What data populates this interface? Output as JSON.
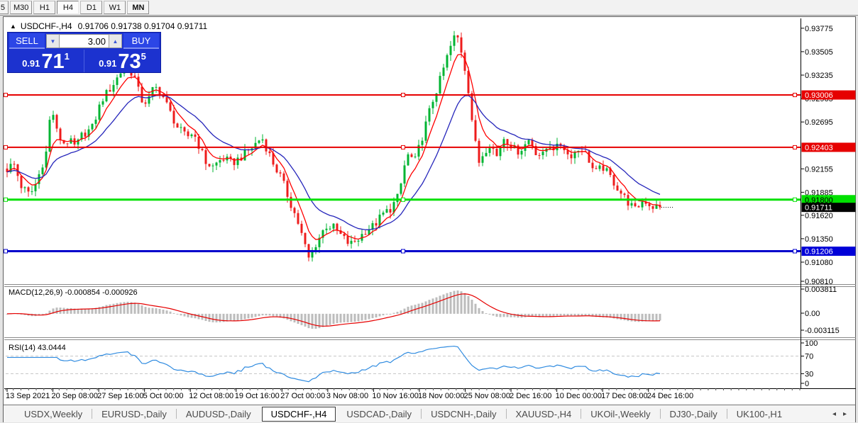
{
  "toolbar": {
    "partial_button": "5",
    "buttons": [
      "M30",
      "H1",
      "H4",
      "D1",
      "W1",
      "MN"
    ],
    "active": "H4"
  },
  "chart": {
    "collapse_icon": "▲",
    "title_symbol": "USDCHF-,H4",
    "title_ohlc": "0.91706 0.91738 0.91704 0.91711"
  },
  "trade_panel": {
    "sell_label": "SELL",
    "buy_label": "BUY",
    "volume": "3.00",
    "spin_down_icon": "▼",
    "spin_up_icon": "▲",
    "sell_price_prefix": "0.91",
    "sell_price_big": "71",
    "sell_price_sup": "1",
    "buy_price_prefix": "0.91",
    "buy_price_big": "73",
    "buy_price_sup": "5"
  },
  "chart_data": {
    "type": "candlestick-with-indicators",
    "symbol": "USDCHF-,H4",
    "current_price": 0.91711,
    "bar_count": 185,
    "price_path": [
      [
        0.0,
        0.9215
      ],
      [
        0.01,
        0.9222
      ],
      [
        0.022,
        0.9195
      ],
      [
        0.035,
        0.9185
      ],
      [
        0.045,
        0.92
      ],
      [
        0.06,
        0.9235
      ],
      [
        0.068,
        0.929
      ],
      [
        0.075,
        0.926
      ],
      [
        0.085,
        0.9245
      ],
      [
        0.095,
        0.9248
      ],
      [
        0.105,
        0.924
      ],
      [
        0.115,
        0.9255
      ],
      [
        0.13,
        0.9262
      ],
      [
        0.145,
        0.9295
      ],
      [
        0.16,
        0.931
      ],
      [
        0.175,
        0.9328
      ],
      [
        0.185,
        0.9332
      ],
      [
        0.195,
        0.9322
      ],
      [
        0.205,
        0.9295
      ],
      [
        0.215,
        0.9292
      ],
      [
        0.225,
        0.931
      ],
      [
        0.235,
        0.9305
      ],
      [
        0.25,
        0.928
      ],
      [
        0.262,
        0.9262
      ],
      [
        0.275,
        0.9252
      ],
      [
        0.285,
        0.9258
      ],
      [
        0.295,
        0.924
      ],
      [
        0.305,
        0.9222
      ],
      [
        0.315,
        0.9218
      ],
      [
        0.33,
        0.9228
      ],
      [
        0.345,
        0.9222
      ],
      [
        0.36,
        0.923
      ],
      [
        0.375,
        0.924
      ],
      [
        0.39,
        0.9252
      ],
      [
        0.4,
        0.9235
      ],
      [
        0.41,
        0.9218
      ],
      [
        0.42,
        0.9205
      ],
      [
        0.432,
        0.918
      ],
      [
        0.445,
        0.9155
      ],
      [
        0.455,
        0.913
      ],
      [
        0.462,
        0.9112
      ],
      [
        0.47,
        0.9125
      ],
      [
        0.488,
        0.915
      ],
      [
        0.5,
        0.9148
      ],
      [
        0.512,
        0.9138
      ],
      [
        0.525,
        0.9128
      ],
      [
        0.538,
        0.9135
      ],
      [
        0.55,
        0.9145
      ],
      [
        0.562,
        0.915
      ],
      [
        0.575,
        0.9163
      ],
      [
        0.588,
        0.917
      ],
      [
        0.6,
        0.9185
      ],
      [
        0.612,
        0.9232
      ],
      [
        0.625,
        0.9225
      ],
      [
        0.638,
        0.9258
      ],
      [
        0.65,
        0.929
      ],
      [
        0.662,
        0.9315
      ],
      [
        0.672,
        0.934
      ],
      [
        0.682,
        0.9362
      ],
      [
        0.688,
        0.9372
      ],
      [
        0.698,
        0.9345
      ],
      [
        0.706,
        0.931
      ],
      [
        0.714,
        0.926
      ],
      [
        0.722,
        0.9222
      ],
      [
        0.73,
        0.9235
      ],
      [
        0.74,
        0.9245
      ],
      [
        0.75,
        0.923
      ],
      [
        0.76,
        0.9252
      ],
      [
        0.77,
        0.9245
      ],
      [
        0.78,
        0.9235
      ],
      [
        0.79,
        0.924
      ],
      [
        0.8,
        0.925
      ],
      [
        0.81,
        0.9235
      ],
      [
        0.82,
        0.923
      ],
      [
        0.83,
        0.9245
      ],
      [
        0.84,
        0.9238
      ],
      [
        0.85,
        0.9245
      ],
      [
        0.86,
        0.923
      ],
      [
        0.87,
        0.9235
      ],
      [
        0.88,
        0.924
      ],
      [
        0.89,
        0.9228
      ],
      [
        0.9,
        0.921
      ],
      [
        0.912,
        0.9218
      ],
      [
        0.925,
        0.9205
      ],
      [
        0.938,
        0.919
      ],
      [
        0.95,
        0.9178
      ],
      [
        0.962,
        0.9168
      ],
      [
        0.975,
        0.918
      ],
      [
        0.988,
        0.9172
      ],
      [
        1.0,
        0.91711
      ]
    ],
    "levels": [
      {
        "value": 0.93006,
        "color": "#e60000",
        "width": 2
      },
      {
        "value": 0.92403,
        "color": "#e60000",
        "width": 2
      },
      {
        "value": 0.918,
        "color": "#00e000",
        "width": 3
      },
      {
        "value": 0.91206,
        "color": "#0000cc",
        "width": 3
      }
    ],
    "price_axis_ticks": [
      0.93775,
      0.93505,
      0.93235,
      0.92965,
      0.92695,
      0.92155,
      0.91885,
      0.9162,
      0.9135,
      0.9108,
      0.9081
    ],
    "price_axis_badges": [
      {
        "value": 0.93006,
        "bg": "#e60000",
        "fg": "#ffffff"
      },
      {
        "value": 0.92403,
        "bg": "#e60000",
        "fg": "#ffffff"
      },
      {
        "value": 0.918,
        "bg": "#00e000",
        "fg": "#000000"
      },
      {
        "value": 0.91711,
        "bg": "#000000",
        "fg": "#ffffff"
      },
      {
        "value": 0.91206,
        "bg": "#0000d8",
        "fg": "#ffffff"
      }
    ],
    "time_labels": [
      "13 Sep 2021",
      "20 Sep 08:00",
      "27 Sep 16:00",
      "5 Oct 00:00",
      "12 Oct 08:00",
      "19 Oct 16:00",
      "27 Oct 00:00",
      "3 Nov 08:00",
      "10 Nov 16:00",
      "18 Nov 00:00",
      "25 Nov 08:00",
      "2 Dec 16:00",
      "10 Dec 00:00",
      "17 Dec 08:00",
      "24 Dec 16:00"
    ],
    "macd": {
      "label": "MACD(12,26,9) -0.000854 -0.000926",
      "axis_max": 0.003811,
      "axis_min": -0.003115,
      "axis_labels": [
        "0.003811",
        "0.00",
        "-0.003115"
      ],
      "hist_color": "#bcbcbc",
      "signal_color": "#e60000"
    },
    "rsi": {
      "label": "RSI(14) 43.0444",
      "axis_labels": [
        "100",
        "70",
        "30",
        "0"
      ],
      "levels": [
        70,
        30
      ],
      "line_color": "#2f8be0"
    },
    "colors": {
      "up_candle": "#00b432",
      "down_candle": "#ee1c1c",
      "ma_fast": "#ff0000",
      "ma_slow": "#2626bb",
      "axis_text": "#000000"
    }
  },
  "tabbar": {
    "items": [
      "USDX,Weekly",
      "EURUSD-,Daily",
      "AUDUSD-,Daily",
      "USDCHF-,H4",
      "USDCAD-,Daily",
      "USDCNH-,Daily",
      "XAUUSD-,H4",
      "UKOil-,Weekly",
      "DJ30-,Daily",
      "UK100-,H1"
    ],
    "active": "USDCHF-,H4",
    "left_arrow_icon": "◂",
    "right_arrow_icon": "▸"
  }
}
